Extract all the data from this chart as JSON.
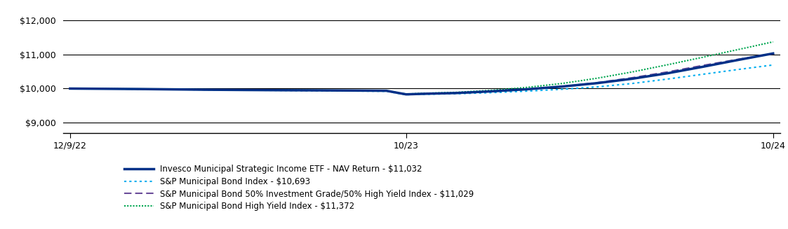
{
  "x_labels": [
    "12/9/22",
    "10/23",
    "10/24"
  ],
  "x_tick_positions": [
    0.0,
    0.478,
    1.0
  ],
  "yticks": [
    9000,
    10000,
    11000,
    12000
  ],
  "ylim": [
    8700,
    12400
  ],
  "xlim": [
    -0.01,
    1.01
  ],
  "series": {
    "nav": {
      "label": "Invesco Municipal Strategic Income ETF - NAV Return - $11,032",
      "color": "#003087",
      "linewidth": 2.5,
      "points": [
        [
          0.0,
          10000
        ],
        [
          0.05,
          9993
        ],
        [
          0.1,
          9986
        ],
        [
          0.15,
          9975
        ],
        [
          0.2,
          9965
        ],
        [
          0.25,
          9958
        ],
        [
          0.3,
          9952
        ],
        [
          0.35,
          9948
        ],
        [
          0.4,
          9942
        ],
        [
          0.45,
          9935
        ],
        [
          0.478,
          9830
        ],
        [
          0.5,
          9845
        ],
        [
          0.55,
          9870
        ],
        [
          0.6,
          9920
        ],
        [
          0.65,
          9980
        ],
        [
          0.7,
          10060
        ],
        [
          0.75,
          10160
        ],
        [
          0.8,
          10290
        ],
        [
          0.85,
          10450
        ],
        [
          0.9,
          10640
        ],
        [
          0.95,
          10840
        ],
        [
          1.0,
          11032
        ]
      ]
    },
    "sp_muni": {
      "label": "S&P Municipal Bond Index - $10,693",
      "color": "#00AEEF",
      "linewidth": 1.5,
      "points": [
        [
          0.0,
          10000
        ],
        [
          0.05,
          9993
        ],
        [
          0.1,
          9984
        ],
        [
          0.15,
          9972
        ],
        [
          0.2,
          9962
        ],
        [
          0.25,
          9952
        ],
        [
          0.3,
          9944
        ],
        [
          0.35,
          9936
        ],
        [
          0.4,
          9928
        ],
        [
          0.45,
          9920
        ],
        [
          0.478,
          9820
        ],
        [
          0.5,
          9832
        ],
        [
          0.55,
          9848
        ],
        [
          0.6,
          9880
        ],
        [
          0.65,
          9925
        ],
        [
          0.7,
          9980
        ],
        [
          0.75,
          10050
        ],
        [
          0.8,
          10150
        ],
        [
          0.85,
          10280
        ],
        [
          0.9,
          10420
        ],
        [
          0.95,
          10560
        ],
        [
          1.0,
          10693
        ]
      ]
    },
    "sp_50_50": {
      "label": "S&P Municipal Bond 50% Investment Grade/50% High Yield Index - $11,029",
      "color": "#6B4C9A",
      "linewidth": 1.5,
      "points": [
        [
          0.0,
          10000
        ],
        [
          0.05,
          9993
        ],
        [
          0.1,
          9985
        ],
        [
          0.15,
          9974
        ],
        [
          0.2,
          9964
        ],
        [
          0.25,
          9955
        ],
        [
          0.3,
          9948
        ],
        [
          0.35,
          9942
        ],
        [
          0.4,
          9936
        ],
        [
          0.45,
          9928
        ],
        [
          0.478,
          9828
        ],
        [
          0.5,
          9843
        ],
        [
          0.55,
          9865
        ],
        [
          0.6,
          9910
        ],
        [
          0.65,
          9975
        ],
        [
          0.7,
          10060
        ],
        [
          0.75,
          10175
        ],
        [
          0.8,
          10320
        ],
        [
          0.85,
          10490
        ],
        [
          0.9,
          10680
        ],
        [
          0.95,
          10860
        ],
        [
          1.0,
          11029
        ]
      ]
    },
    "sp_hy": {
      "label": "S&P Municipal Bond High Yield Index - $11,372",
      "color": "#00A651",
      "linewidth": 1.5,
      "points": [
        [
          0.0,
          10000
        ],
        [
          0.05,
          9994
        ],
        [
          0.1,
          9987
        ],
        [
          0.15,
          9977
        ],
        [
          0.2,
          9968
        ],
        [
          0.25,
          9960
        ],
        [
          0.3,
          9954
        ],
        [
          0.35,
          9949
        ],
        [
          0.4,
          9944
        ],
        [
          0.45,
          9937
        ],
        [
          0.478,
          9838
        ],
        [
          0.5,
          9858
        ],
        [
          0.55,
          9890
        ],
        [
          0.6,
          9950
        ],
        [
          0.65,
          10035
        ],
        [
          0.7,
          10150
        ],
        [
          0.75,
          10305
        ],
        [
          0.8,
          10490
        ],
        [
          0.85,
          10700
        ],
        [
          0.9,
          10920
        ],
        [
          0.95,
          11145
        ],
        [
          1.0,
          11372
        ]
      ]
    }
  },
  "background_color": "#ffffff",
  "grid_color": "#000000",
  "tick_label_fontsize": 9,
  "legend_fontsize": 8.5,
  "legend_indent": 0.08
}
